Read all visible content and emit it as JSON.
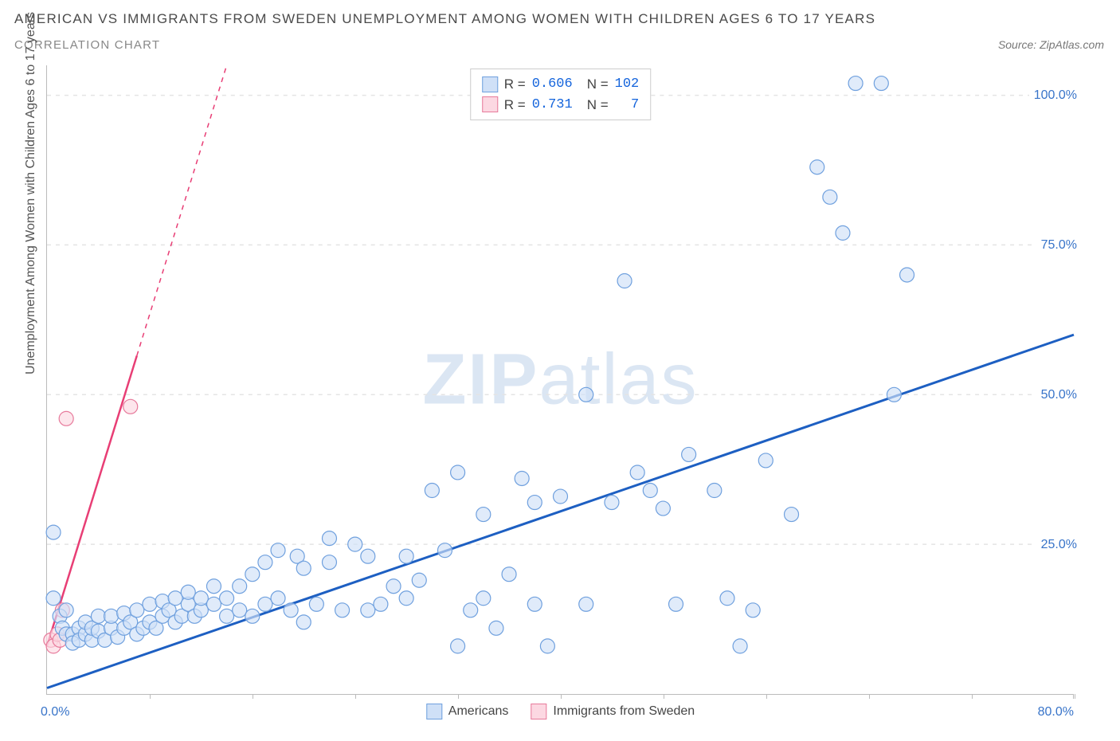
{
  "title": "AMERICAN VS IMMIGRANTS FROM SWEDEN UNEMPLOYMENT AMONG WOMEN WITH CHILDREN AGES 6 TO 17 YEARS",
  "subtitle": "CORRELATION CHART",
  "source_label": "Source: ZipAtlas.com",
  "y_axis_title": "Unemployment Among Women with Children Ages 6 to 17 years",
  "watermark": {
    "bold": "ZIP",
    "light": "atlas"
  },
  "colors": {
    "series_a_fill": "#cfe0f7",
    "series_a_stroke": "#6fa0de",
    "series_a_line": "#1d5fc2",
    "series_b_fill": "#fcd8e2",
    "series_b_stroke": "#e77a9b",
    "series_b_line": "#e83e75",
    "axis_text": "#3874c9",
    "grid": "#e4e4e4"
  },
  "plot": {
    "xlim": [
      0,
      80
    ],
    "ylim": [
      0,
      105
    ],
    "marker_radius": 9,
    "line_width_a": 3,
    "line_width_b": 2.5
  },
  "y_ticks": [
    {
      "v": 25,
      "label": "25.0%"
    },
    {
      "v": 50,
      "label": "50.0%"
    },
    {
      "v": 75,
      "label": "75.0%"
    },
    {
      "v": 100,
      "label": "100.0%"
    }
  ],
  "x_ticks": [
    8,
    16,
    24,
    32,
    40,
    48,
    56,
    64,
    72,
    80
  ],
  "x_label_min": "0.0%",
  "x_label_max": "80.0%",
  "stats": {
    "rows": [
      {
        "swatch_fill": "#cfe0f7",
        "swatch_border": "#6fa0de",
        "r_label": "R =",
        "r": "0.606",
        "n_label": "N =",
        "n": "102"
      },
      {
        "swatch_fill": "#fcd8e2",
        "swatch_border": "#e77a9b",
        "r_label": "R =",
        "r": "0.731",
        "n_label": "N =",
        "n": "  7"
      }
    ]
  },
  "legend": {
    "a": "Americans",
    "b": "Immigrants from Sweden"
  },
  "series_a_trend": {
    "x1": 0,
    "y1": 1,
    "x2": 80,
    "y2": 60
  },
  "series_b_trend": {
    "x1": 0,
    "y1": 8,
    "x2": 14,
    "y2": 105
  },
  "series_b_solid_until_x": 7,
  "series_a_points": [
    [
      0.5,
      27
    ],
    [
      0.5,
      16
    ],
    [
      1,
      13
    ],
    [
      1.2,
      11
    ],
    [
      1.5,
      10
    ],
    [
      1.5,
      14
    ],
    [
      2,
      10
    ],
    [
      2,
      8.5
    ],
    [
      2.5,
      11
    ],
    [
      2.5,
      9
    ],
    [
      3,
      10
    ],
    [
      3,
      12
    ],
    [
      3.5,
      9
    ],
    [
      3.5,
      11
    ],
    [
      4,
      10.5
    ],
    [
      4,
      13
    ],
    [
      4.5,
      9
    ],
    [
      5,
      11
    ],
    [
      5,
      13
    ],
    [
      5.5,
      9.5
    ],
    [
      6,
      11
    ],
    [
      6,
      13.5
    ],
    [
      6.5,
      12
    ],
    [
      7,
      10
    ],
    [
      7,
      14
    ],
    [
      7.5,
      11
    ],
    [
      8,
      12
    ],
    [
      8,
      15
    ],
    [
      8.5,
      11
    ],
    [
      9,
      13
    ],
    [
      9,
      15.5
    ],
    [
      9.5,
      14
    ],
    [
      10,
      12
    ],
    [
      10,
      16
    ],
    [
      10.5,
      13
    ],
    [
      11,
      15
    ],
    [
      11,
      17
    ],
    [
      11.5,
      13
    ],
    [
      12,
      14
    ],
    [
      12,
      16
    ],
    [
      13,
      15
    ],
    [
      13,
      18
    ],
    [
      14,
      13
    ],
    [
      14,
      16
    ],
    [
      15,
      14
    ],
    [
      15,
      18
    ],
    [
      16,
      13
    ],
    [
      16,
      20
    ],
    [
      17,
      15
    ],
    [
      17,
      22
    ],
    [
      18,
      16
    ],
    [
      18,
      24
    ],
    [
      19,
      14
    ],
    [
      19.5,
      23
    ],
    [
      20,
      12
    ],
    [
      20,
      21
    ],
    [
      21,
      15
    ],
    [
      22,
      22
    ],
    [
      22,
      26
    ],
    [
      23,
      14
    ],
    [
      24,
      25
    ],
    [
      25,
      14
    ],
    [
      25,
      23
    ],
    [
      26,
      15
    ],
    [
      27,
      18
    ],
    [
      28,
      23
    ],
    [
      28,
      16
    ],
    [
      29,
      19
    ],
    [
      30,
      34
    ],
    [
      31,
      24
    ],
    [
      32,
      8
    ],
    [
      32,
      37
    ],
    [
      33,
      14
    ],
    [
      34,
      16
    ],
    [
      34,
      30
    ],
    [
      35,
      11
    ],
    [
      36,
      20
    ],
    [
      37,
      36
    ],
    [
      38,
      15
    ],
    [
      38,
      32
    ],
    [
      39,
      8
    ],
    [
      40,
      33
    ],
    [
      42,
      15
    ],
    [
      42,
      50
    ],
    [
      44,
      32
    ],
    [
      45,
      69
    ],
    [
      46,
      37
    ],
    [
      47,
      34
    ],
    [
      48,
      31
    ],
    [
      49,
      15
    ],
    [
      50,
      40
    ],
    [
      52,
      34
    ],
    [
      53,
      16
    ],
    [
      54,
      8
    ],
    [
      56,
      39
    ],
    [
      58,
      30
    ],
    [
      60,
      88
    ],
    [
      61,
      83
    ],
    [
      62,
      77
    ],
    [
      63,
      102
    ],
    [
      65,
      102
    ],
    [
      66,
      50
    ],
    [
      67,
      70
    ],
    [
      55,
      14
    ]
  ],
  "series_b_points": [
    [
      0.3,
      9
    ],
    [
      0.5,
      8
    ],
    [
      0.8,
      10
    ],
    [
      1,
      9
    ],
    [
      1.2,
      14
    ],
    [
      1.5,
      46
    ],
    [
      6.5,
      48
    ]
  ]
}
